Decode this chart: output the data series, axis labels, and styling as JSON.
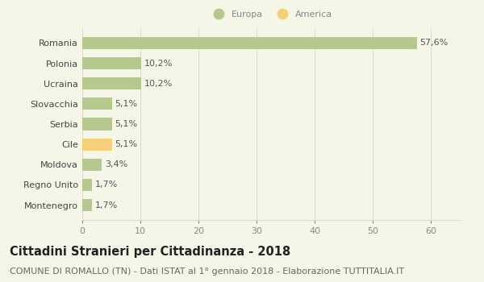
{
  "categories": [
    "Montenegro",
    "Regno Unito",
    "Moldova",
    "Cile",
    "Serbia",
    "Slovacchia",
    "Ucraina",
    "Polonia",
    "Romania"
  ],
  "values": [
    1.7,
    1.7,
    3.4,
    5.1,
    5.1,
    5.1,
    10.2,
    10.2,
    57.6
  ],
  "labels": [
    "1,7%",
    "1,7%",
    "3,4%",
    "5,1%",
    "5,1%",
    "5,1%",
    "10,2%",
    "10,2%",
    "57,6%"
  ],
  "colors": [
    "#b5c98e",
    "#b5c98e",
    "#b5c98e",
    "#f5d07a",
    "#b5c98e",
    "#b5c98e",
    "#b5c98e",
    "#b5c98e",
    "#b5c98e"
  ],
  "europa_color": "#b5c98e",
  "america_color": "#f5d07a",
  "background_color": "#f5f5e8",
  "grid_color": "#ddddcc",
  "xlim": [
    0,
    65
  ],
  "xticks": [
    0,
    10,
    20,
    30,
    40,
    50,
    60
  ],
  "title": "Cittadini Stranieri per Cittadinanza - 2018",
  "subtitle": "COMUNE DI ROMALLO (TN) - Dati ISTAT al 1° gennaio 2018 - Elaborazione TUTTITALIA.IT",
  "legend_europa": "Europa",
  "legend_america": "America",
  "title_fontsize": 10.5,
  "subtitle_fontsize": 8,
  "tick_fontsize": 8,
  "label_fontsize": 8
}
